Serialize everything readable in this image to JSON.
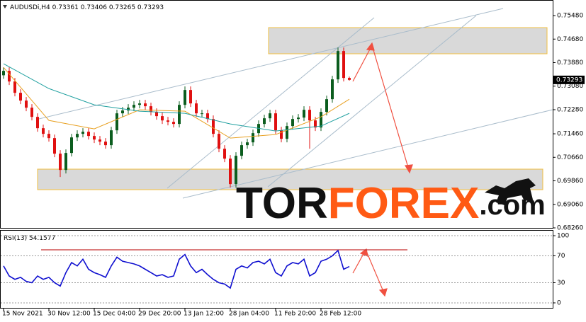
{
  "chart_data": {
    "type": "candlestick",
    "title": "AUDUSDi,H4",
    "categories": [
      "15 Nov 2021",
      null,
      null,
      null,
      null,
      null,
      null,
      null,
      "30 Nov 12:00",
      null,
      null,
      null,
      null,
      null,
      null,
      null,
      "15 Dec 04:00",
      null,
      null,
      null,
      null,
      null,
      null,
      null,
      "29 Dec 20:00",
      null,
      null,
      null,
      null,
      null,
      null,
      null,
      "13 Jan 12:00",
      null,
      null,
      null,
      null,
      null,
      null,
      null,
      "28 Jan 04:00",
      null,
      null,
      null,
      null,
      null,
      null,
      null,
      "11 Feb 20:00",
      null,
      null,
      null,
      null,
      null,
      null,
      null,
      "28 Feb 12:00",
      null,
      null,
      null,
      null,
      null
    ],
    "open": [
      0.7345,
      0.736,
      0.73239,
      0.72854,
      0.72589,
      0.72348,
      0.72035,
      0.7165,
      0.71458,
      0.71313,
      0.70784,
      0.7023,
      0.70808,
      0.71337,
      0.71458,
      0.7153,
      0.71386,
      0.71265,
      0.71193,
      0.71073,
      0.71578,
      0.72156,
      0.72252,
      0.72348,
      0.72444,
      0.72493,
      0.72397,
      0.72204,
      0.7206,
      0.71915,
      0.71867,
      0.71795,
      0.72444,
      0.7295,
      0.72493,
      0.72156,
      0.72156,
      0.71963,
      0.71458,
      0.70952,
      0.70615,
      0.69749,
      0.70712,
      0.71073,
      0.71169,
      0.71482,
      0.71795,
      0.71987,
      0.72156,
      0.71578,
      0.71289,
      0.71723,
      0.71963,
      0.72011,
      0.72276,
      0.71915,
      0.71674,
      0.72204,
      0.72637,
      0.73311,
      0.74274,
      0.73361
    ],
    "high": [
      0.7372,
      0.7372,
      0.73359,
      0.72974,
      0.72709,
      0.72468,
      0.72155,
      0.7177,
      0.71578,
      0.71433,
      0.70904,
      0.70928,
      0.71457,
      0.71578,
      0.7165,
      0.7165,
      0.71506,
      0.71385,
      0.71313,
      0.71698,
      0.72276,
      0.72372,
      0.72468,
      0.72564,
      0.72613,
      0.72613,
      0.72517,
      0.72324,
      0.7218,
      0.72035,
      0.71987,
      0.72564,
      0.7307,
      0.7307,
      0.72613,
      0.72276,
      0.72276,
      0.72083,
      0.71578,
      0.71072,
      0.70735,
      0.70832,
      0.71193,
      0.71289,
      0.71602,
      0.71915,
      0.72107,
      0.72276,
      0.72276,
      0.71698,
      0.71843,
      0.72083,
      0.72131,
      0.72396,
      0.72396,
      0.72035,
      0.72324,
      0.72757,
      0.73431,
      0.74394,
      0.74394,
      0.73406
    ],
    "low": [
      0.7333,
      0.73119,
      0.72734,
      0.72469,
      0.72228,
      0.71915,
      0.7153,
      0.71338,
      0.71193,
      0.70664,
      0.6999,
      0.7011,
      0.70688,
      0.71217,
      0.71338,
      0.71266,
      0.71145,
      0.71073,
      0.70953,
      0.70953,
      0.71458,
      0.72036,
      0.72132,
      0.72228,
      0.72324,
      0.72277,
      0.72084,
      0.7194,
      0.71795,
      0.71747,
      0.71675,
      0.71675,
      0.72324,
      0.72373,
      0.72036,
      0.72036,
      0.71843,
      0.71338,
      0.70832,
      0.70495,
      0.69629,
      0.69629,
      0.70592,
      0.70953,
      0.71049,
      0.71362,
      0.71675,
      0.71867,
      0.71458,
      0.71169,
      0.71169,
      0.71603,
      0.71843,
      0.71891,
      0.70952,
      0.71554,
      0.71554,
      0.72084,
      0.72517,
      0.73191,
      0.73239,
      0.73265
    ],
    "close": [
      0.736,
      0.73239,
      0.72854,
      0.72589,
      0.72348,
      0.72035,
      0.7165,
      0.71458,
      0.71313,
      0.70784,
      0.7023,
      0.70808,
      0.71337,
      0.71458,
      0.7153,
      0.71386,
      0.71265,
      0.71193,
      0.71073,
      0.71578,
      0.72156,
      0.72252,
      0.72348,
      0.72444,
      0.72493,
      0.72397,
      0.72204,
      0.7206,
      0.71915,
      0.71867,
      0.71795,
      0.72444,
      0.7295,
      0.72493,
      0.72156,
      0.72156,
      0.71963,
      0.71458,
      0.70952,
      0.70615,
      0.69749,
      0.70712,
      0.71073,
      0.71169,
      0.71482,
      0.71795,
      0.71987,
      0.72156,
      0.71578,
      0.71289,
      0.71723,
      0.71963,
      0.72011,
      0.72276,
      0.71915,
      0.71674,
      0.72204,
      0.72637,
      0.73311,
      0.74274,
      0.73359,
      0.73293
    ],
    "up_color": "#0b5d1e",
    "down_color": "#e01010",
    "moving_averages": [
      {
        "color": "#e8a020",
        "x": [
          0,
          8,
          16,
          24,
          32,
          40,
          48,
          56,
          61
        ],
        "values": [
          0.7372,
          0.71915,
          0.71626,
          0.72276,
          0.72228,
          0.71313,
          0.71434,
          0.72035,
          0.72637
        ]
      },
      {
        "color": "#20a0a0",
        "x": [
          0,
          8,
          16,
          24,
          32,
          40,
          48,
          56,
          61
        ],
        "values": [
          0.73841,
          0.72998,
          0.72445,
          0.72228,
          0.72156,
          0.71795,
          0.71554,
          0.71722,
          0.72156
        ]
      }
    ],
    "ylim": [
      0.6826,
      0.7601
    ],
    "yticks": [
      {
        "value": 0.7548,
        "label": "0.75480"
      },
      {
        "value": 0.7468,
        "label": "0.74680"
      },
      {
        "value": 0.7388,
        "label": "0.73880"
      },
      {
        "value": 0.7308,
        "label": "0.73080"
      },
      {
        "value": 0.7228,
        "label": "0.72280"
      },
      {
        "value": 0.7146,
        "label": "0.71460"
      },
      {
        "value": 0.7066,
        "label": "0.70660"
      },
      {
        "value": 0.6986,
        "label": "0.69860"
      },
      {
        "value": 0.6906,
        "label": "0.69060"
      },
      {
        "value": 0.6826,
        "label": "0.68260"
      }
    ],
    "rsi": {
      "label": "RSI(13)",
      "color": "#1010d0",
      "values": [
        55,
        40,
        35,
        38,
        32,
        30,
        40,
        35,
        38,
        30,
        25,
        45,
        60,
        55,
        65,
        50,
        45,
        42,
        38,
        55,
        68,
        62,
        60,
        58,
        55,
        50,
        45,
        40,
        42,
        38,
        40,
        65,
        72,
        55,
        45,
        50,
        42,
        35,
        30,
        28,
        22,
        50,
        55,
        52,
        60,
        62,
        58,
        65,
        45,
        40,
        55,
        60,
        58,
        65,
        40,
        45,
        62,
        65,
        70,
        78,
        50,
        54.1577
      ],
      "ylim": [
        -7.4,
        107.4
      ],
      "yticks": [
        100,
        70,
        30,
        0
      ]
    },
    "watermark": [
      "TOR",
      "FOREX",
      ".com"
    ]
  }
}
